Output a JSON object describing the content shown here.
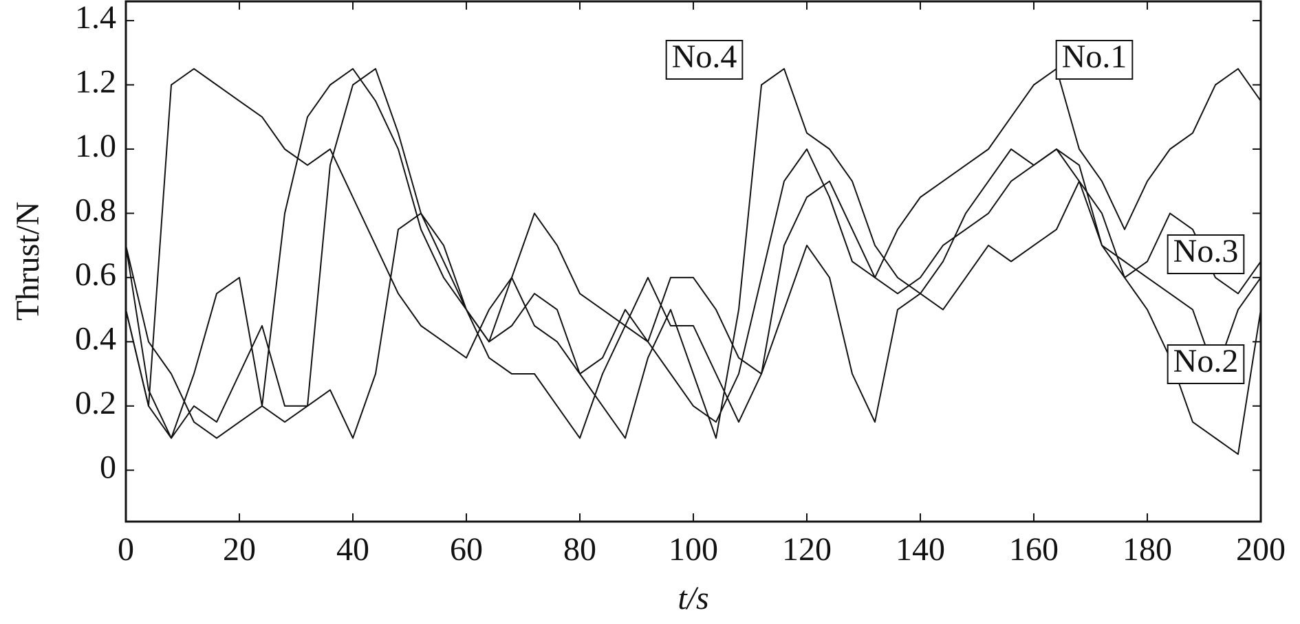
{
  "chart_data": {
    "type": "line",
    "x_label": "t/s",
    "y_label": "Thrust/N",
    "x": [
      0,
      4,
      8,
      12,
      16,
      20,
      24,
      28,
      32,
      36,
      40,
      44,
      48,
      52,
      56,
      60,
      64,
      68,
      72,
      76,
      80,
      84,
      88,
      92,
      96,
      100,
      104,
      108,
      112,
      116,
      120,
      124,
      128,
      132,
      136,
      140,
      144,
      148,
      152,
      156,
      160,
      164,
      168,
      172,
      176,
      180,
      184,
      188,
      192,
      196,
      200
    ],
    "series": [
      {
        "name": "No.1",
        "color": "#111111",
        "values": [
          0.5,
          0.2,
          1.2,
          1.25,
          1.2,
          1.15,
          1.1,
          1.0,
          0.95,
          1.0,
          0.85,
          0.7,
          0.55,
          0.45,
          0.4,
          0.35,
          0.5,
          0.6,
          0.45,
          0.4,
          0.3,
          0.35,
          0.5,
          0.4,
          0.3,
          0.2,
          0.15,
          0.3,
          0.6,
          0.9,
          1.0,
          0.85,
          0.65,
          0.6,
          0.75,
          0.85,
          0.9,
          0.95,
          1.0,
          1.1,
          1.2,
          1.25,
          1.0,
          0.9,
          0.75,
          0.9,
          1.0,
          1.05,
          1.2,
          1.25,
          1.15
        ]
      },
      {
        "name": "No.2",
        "color": "#111111",
        "values": [
          0.7,
          0.25,
          0.1,
          0.2,
          0.15,
          0.3,
          0.45,
          0.2,
          0.2,
          0.25,
          0.1,
          0.3,
          0.75,
          0.8,
          0.7,
          0.5,
          0.35,
          0.3,
          0.3,
          0.2,
          0.1,
          0.3,
          0.45,
          0.6,
          0.45,
          0.45,
          0.3,
          0.15,
          0.3,
          0.5,
          0.7,
          0.6,
          0.3,
          0.15,
          0.5,
          0.55,
          0.5,
          0.6,
          0.7,
          0.65,
          0.7,
          0.75,
          0.9,
          0.8,
          0.6,
          0.5,
          0.35,
          0.15,
          0.1,
          0.05,
          0.5
        ]
      },
      {
        "name": "No.3",
        "color": "#111111",
        "values": [
          0.5,
          0.2,
          0.1,
          0.3,
          0.55,
          0.6,
          0.2,
          0.15,
          0.2,
          0.95,
          1.2,
          1.25,
          1.05,
          0.8,
          0.65,
          0.5,
          0.4,
          0.6,
          0.8,
          0.7,
          0.55,
          0.5,
          0.45,
          0.4,
          0.6,
          0.6,
          0.5,
          0.35,
          0.3,
          0.7,
          0.85,
          0.9,
          0.75,
          0.6,
          0.55,
          0.6,
          0.7,
          0.75,
          0.8,
          0.9,
          0.95,
          1.0,
          0.95,
          0.7,
          0.6,
          0.65,
          0.8,
          0.75,
          0.6,
          0.55,
          0.65
        ]
      },
      {
        "name": "No.4",
        "color": "#111111",
        "values": [
          0.7,
          0.4,
          0.3,
          0.15,
          0.1,
          0.15,
          0.2,
          0.8,
          1.1,
          1.2,
          1.25,
          1.15,
          1.0,
          0.75,
          0.6,
          0.5,
          0.4,
          0.45,
          0.55,
          0.5,
          0.3,
          0.2,
          0.1,
          0.35,
          0.5,
          0.3,
          0.1,
          0.5,
          1.2,
          1.25,
          1.05,
          1.0,
          0.9,
          0.7,
          0.6,
          0.55,
          0.65,
          0.8,
          0.9,
          1.0,
          0.95,
          1.0,
          0.9,
          0.7,
          0.65,
          0.6,
          0.55,
          0.5,
          0.3,
          0.5,
          0.6
        ]
      }
    ],
    "xlim": [
      0,
      200
    ],
    "xticks": [
      0,
      20,
      40,
      60,
      80,
      100,
      120,
      140,
      160,
      180,
      200
    ],
    "ylim": [
      -0.16,
      1.46
    ],
    "yticks": [
      0,
      0.2,
      0.4,
      0.6,
      0.8,
      {
        "value": 1,
        "label": "1.0"
      },
      1.2,
      1.4
    ],
    "grid": false
  }
}
